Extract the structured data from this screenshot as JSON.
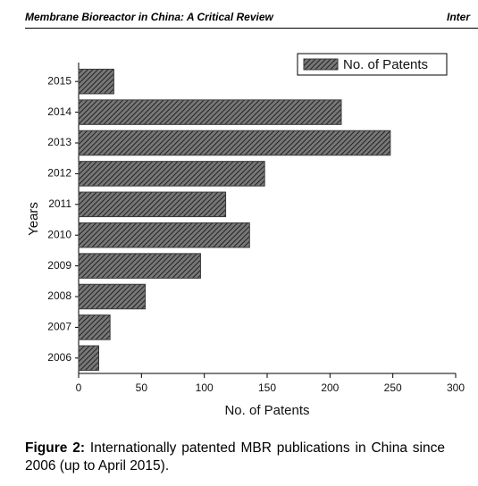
{
  "header": {
    "title": "Membrane Bioreactor in China: A Critical Review",
    "right": "Inter"
  },
  "chart_data": {
    "type": "barh",
    "categories": [
      "2006",
      "2007",
      "2008",
      "2009",
      "2010",
      "2011",
      "2012",
      "2013",
      "2014",
      "2015"
    ],
    "series": [
      {
        "name": "No. of Patents",
        "color": "#3a3a3a",
        "values": [
          16,
          25,
          53,
          97,
          136,
          117,
          148,
          248,
          209,
          28
        ]
      }
    ],
    "xlabel": "No. of Patents",
    "ylabel": "Years",
    "xlim": [
      0,
      300
    ],
    "xticks": [
      0,
      50,
      100,
      150,
      200,
      250,
      300
    ],
    "legend": "upper right"
  },
  "caption": {
    "label": "Figure 2:",
    "text": "Internationally patented MBR publications in China since 2006 (up to April 2015)."
  }
}
